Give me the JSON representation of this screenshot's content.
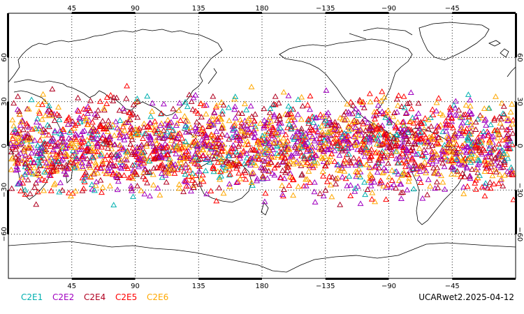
{
  "map": {
    "projection": "equirectangular",
    "lon_range": [
      0,
      360
    ],
    "lat_range": [
      -90,
      90
    ],
    "grid_style": "dotted",
    "lon_ticks": [
      {
        "lon": 45,
        "label": "45"
      },
      {
        "lon": 90,
        "label": "90"
      },
      {
        "lon": 135,
        "label": "135"
      },
      {
        "lon": 180,
        "label": "180"
      },
      {
        "lon": 225,
        "label": "−135"
      },
      {
        "lon": 270,
        "label": "−90"
      },
      {
        "lon": 315,
        "label": "−45"
      }
    ],
    "lat_ticks": [
      {
        "lat": 60,
        "label": "60"
      },
      {
        "lat": 30,
        "label": "30"
      },
      {
        "lat": 0,
        "label": "0"
      },
      {
        "lat": -30,
        "label": "−30"
      },
      {
        "lat": -60,
        "label": "−60"
      }
    ],
    "coastline_color": "#000000",
    "marker_shape": "open-triangle",
    "observation_lat_band": [
      -45,
      45
    ]
  },
  "legend": {
    "items": [
      {
        "label": "C2E1",
        "color": "#00b0b0"
      },
      {
        "label": "C2E2",
        "color": "#a000c0"
      },
      {
        "label": "C2E4",
        "color": "#b00020"
      },
      {
        "label": "C2E5",
        "color": "#ff0000"
      },
      {
        "label": "C2E6",
        "color": "#ffa800"
      }
    ]
  },
  "footer": {
    "title": "UCARwet2.2025-04-12"
  }
}
